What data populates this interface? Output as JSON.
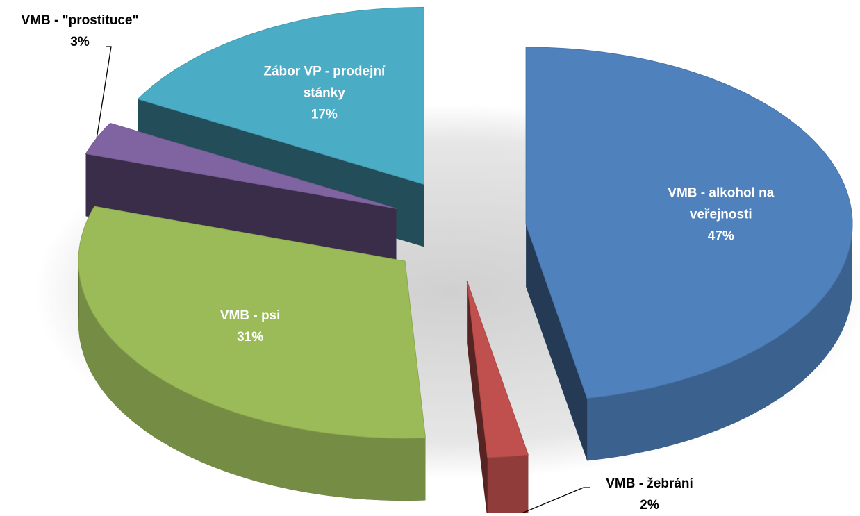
{
  "chart_data": {
    "type": "pie",
    "categories": [
      "VMB - alkohol na veřejnosti",
      "VMB  - žebrání",
      "VMB - psi",
      "VMB - \"prostituce\"",
      "Zábor VP - prodejní stánky"
    ],
    "values": [
      47,
      2,
      31,
      3,
      17
    ],
    "value_labels": [
      "47%",
      "2%",
      "31%",
      "3%",
      "17%"
    ],
    "colors": [
      "#4f81bd",
      "#c0504d",
      "#9bbb59",
      "#8064a2",
      "#4bacc6"
    ]
  }
}
